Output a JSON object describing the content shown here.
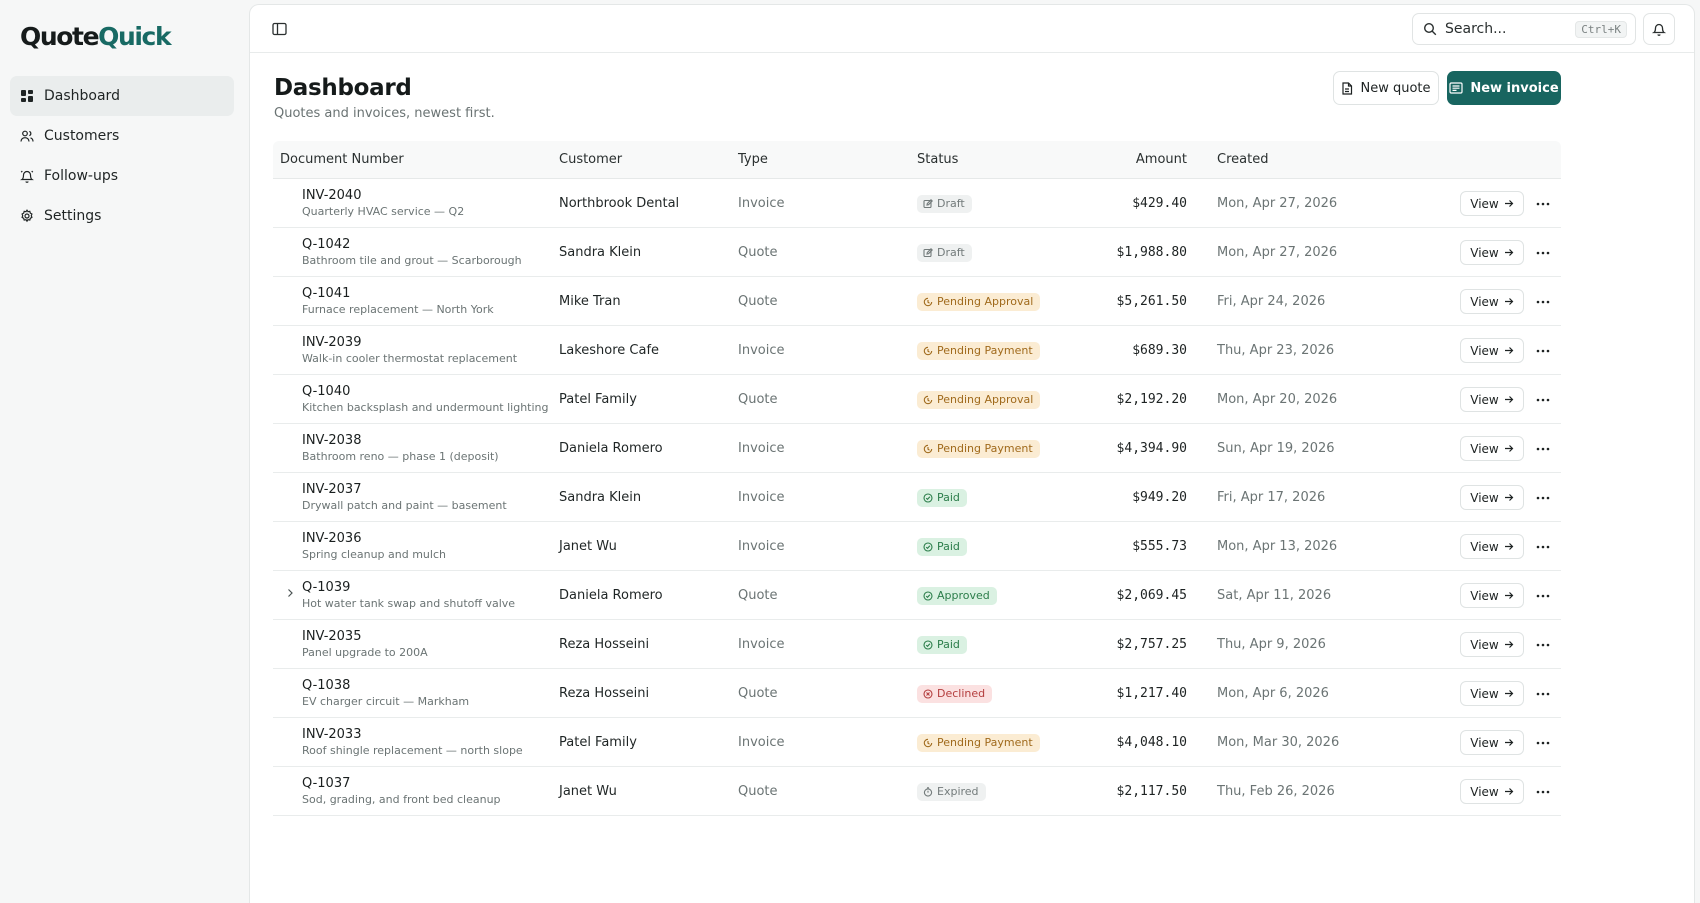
{
  "brand": {
    "part1": "Quote",
    "part2": "Quick",
    "accent": "#186560"
  },
  "sidebar": {
    "items": [
      {
        "label": "Dashboard",
        "icon": "grid-icon",
        "active": true
      },
      {
        "label": "Customers",
        "icon": "users-icon",
        "active": false
      },
      {
        "label": "Follow-ups",
        "icon": "bell-icon",
        "active": false
      },
      {
        "label": "Settings",
        "icon": "gear-icon",
        "active": false
      }
    ]
  },
  "topbar": {
    "search_placeholder": "Search...",
    "shortcut": "Ctrl+K"
  },
  "header": {
    "title": "Dashboard",
    "subtitle": "Quotes and invoices, newest first.",
    "new_quote_label": "New quote",
    "new_invoice_label": "New invoice"
  },
  "table": {
    "columns": [
      "Document Number",
      "Customer",
      "Type",
      "Status",
      "Amount",
      "Created"
    ],
    "view_label": "View",
    "rows": [
      {
        "number": "INV-2040",
        "desc": "Quarterly HVAC service — Q2",
        "customer": "Northbrook Dental",
        "type": "Invoice",
        "status": "Draft",
        "status_kind": "draft",
        "amount": "$429.40",
        "created": "Mon, Apr 27, 2026",
        "expandable": false
      },
      {
        "number": "Q-1042",
        "desc": "Bathroom tile and grout — Scarborough",
        "customer": "Sandra Klein",
        "type": "Quote",
        "status": "Draft",
        "status_kind": "draft",
        "amount": "$1,988.80",
        "created": "Mon, Apr 27, 2026",
        "expandable": false
      },
      {
        "number": "Q-1041",
        "desc": "Furnace replacement — North York",
        "customer": "Mike Tran",
        "type": "Quote",
        "status": "Pending Approval",
        "status_kind": "pending",
        "amount": "$5,261.50",
        "created": "Fri, Apr 24, 2026",
        "expandable": false
      },
      {
        "number": "INV-2039",
        "desc": "Walk-in cooler thermostat replacement",
        "customer": "Lakeshore Cafe",
        "type": "Invoice",
        "status": "Pending Payment",
        "status_kind": "pending",
        "amount": "$689.30",
        "created": "Thu, Apr 23, 2026",
        "expandable": false
      },
      {
        "number": "Q-1040",
        "desc": "Kitchen backsplash and undermount lighting",
        "customer": "Patel Family",
        "type": "Quote",
        "status": "Pending Approval",
        "status_kind": "pending",
        "amount": "$2,192.20",
        "created": "Mon, Apr 20, 2026",
        "expandable": false
      },
      {
        "number": "INV-2038",
        "desc": "Bathroom reno — phase 1 (deposit)",
        "customer": "Daniela Romero",
        "type": "Invoice",
        "status": "Pending Payment",
        "status_kind": "pending",
        "amount": "$4,394.90",
        "created": "Sun, Apr 19, 2026",
        "expandable": false
      },
      {
        "number": "INV-2037",
        "desc": "Drywall patch and paint — basement",
        "customer": "Sandra Klein",
        "type": "Invoice",
        "status": "Paid",
        "status_kind": "paid",
        "amount": "$949.20",
        "created": "Fri, Apr 17, 2026",
        "expandable": false
      },
      {
        "number": "INV-2036",
        "desc": "Spring cleanup and mulch",
        "customer": "Janet Wu",
        "type": "Invoice",
        "status": "Paid",
        "status_kind": "paid",
        "amount": "$555.73",
        "created": "Mon, Apr 13, 2026",
        "expandable": false
      },
      {
        "number": "Q-1039",
        "desc": "Hot water tank swap and shutoff valve",
        "customer": "Daniela Romero",
        "type": "Quote",
        "status": "Approved",
        "status_kind": "approved",
        "amount": "$2,069.45",
        "created": "Sat, Apr 11, 2026",
        "expandable": true
      },
      {
        "number": "INV-2035",
        "desc": "Panel upgrade to 200A",
        "customer": "Reza Hosseini",
        "type": "Invoice",
        "status": "Paid",
        "status_kind": "paid",
        "amount": "$2,757.25",
        "created": "Thu, Apr 9, 2026",
        "expandable": false
      },
      {
        "number": "Q-1038",
        "desc": "EV charger circuit — Markham",
        "customer": "Reza Hosseini",
        "type": "Quote",
        "status": "Declined",
        "status_kind": "declined",
        "amount": "$1,217.40",
        "created": "Mon, Apr 6, 2026",
        "expandable": false
      },
      {
        "number": "INV-2033",
        "desc": "Roof shingle replacement — north slope",
        "customer": "Patel Family",
        "type": "Invoice",
        "status": "Pending Payment",
        "status_kind": "pending",
        "amount": "$4,048.10",
        "created": "Mon, Mar 30, 2026",
        "expandable": false
      },
      {
        "number": "Q-1037",
        "desc": "Sod, grading, and front bed cleanup",
        "customer": "Janet Wu",
        "type": "Quote",
        "status": "Expired",
        "status_kind": "expired",
        "amount": "$2,117.50",
        "created": "Thu, Feb 26, 2026",
        "expandable": false
      }
    ]
  }
}
